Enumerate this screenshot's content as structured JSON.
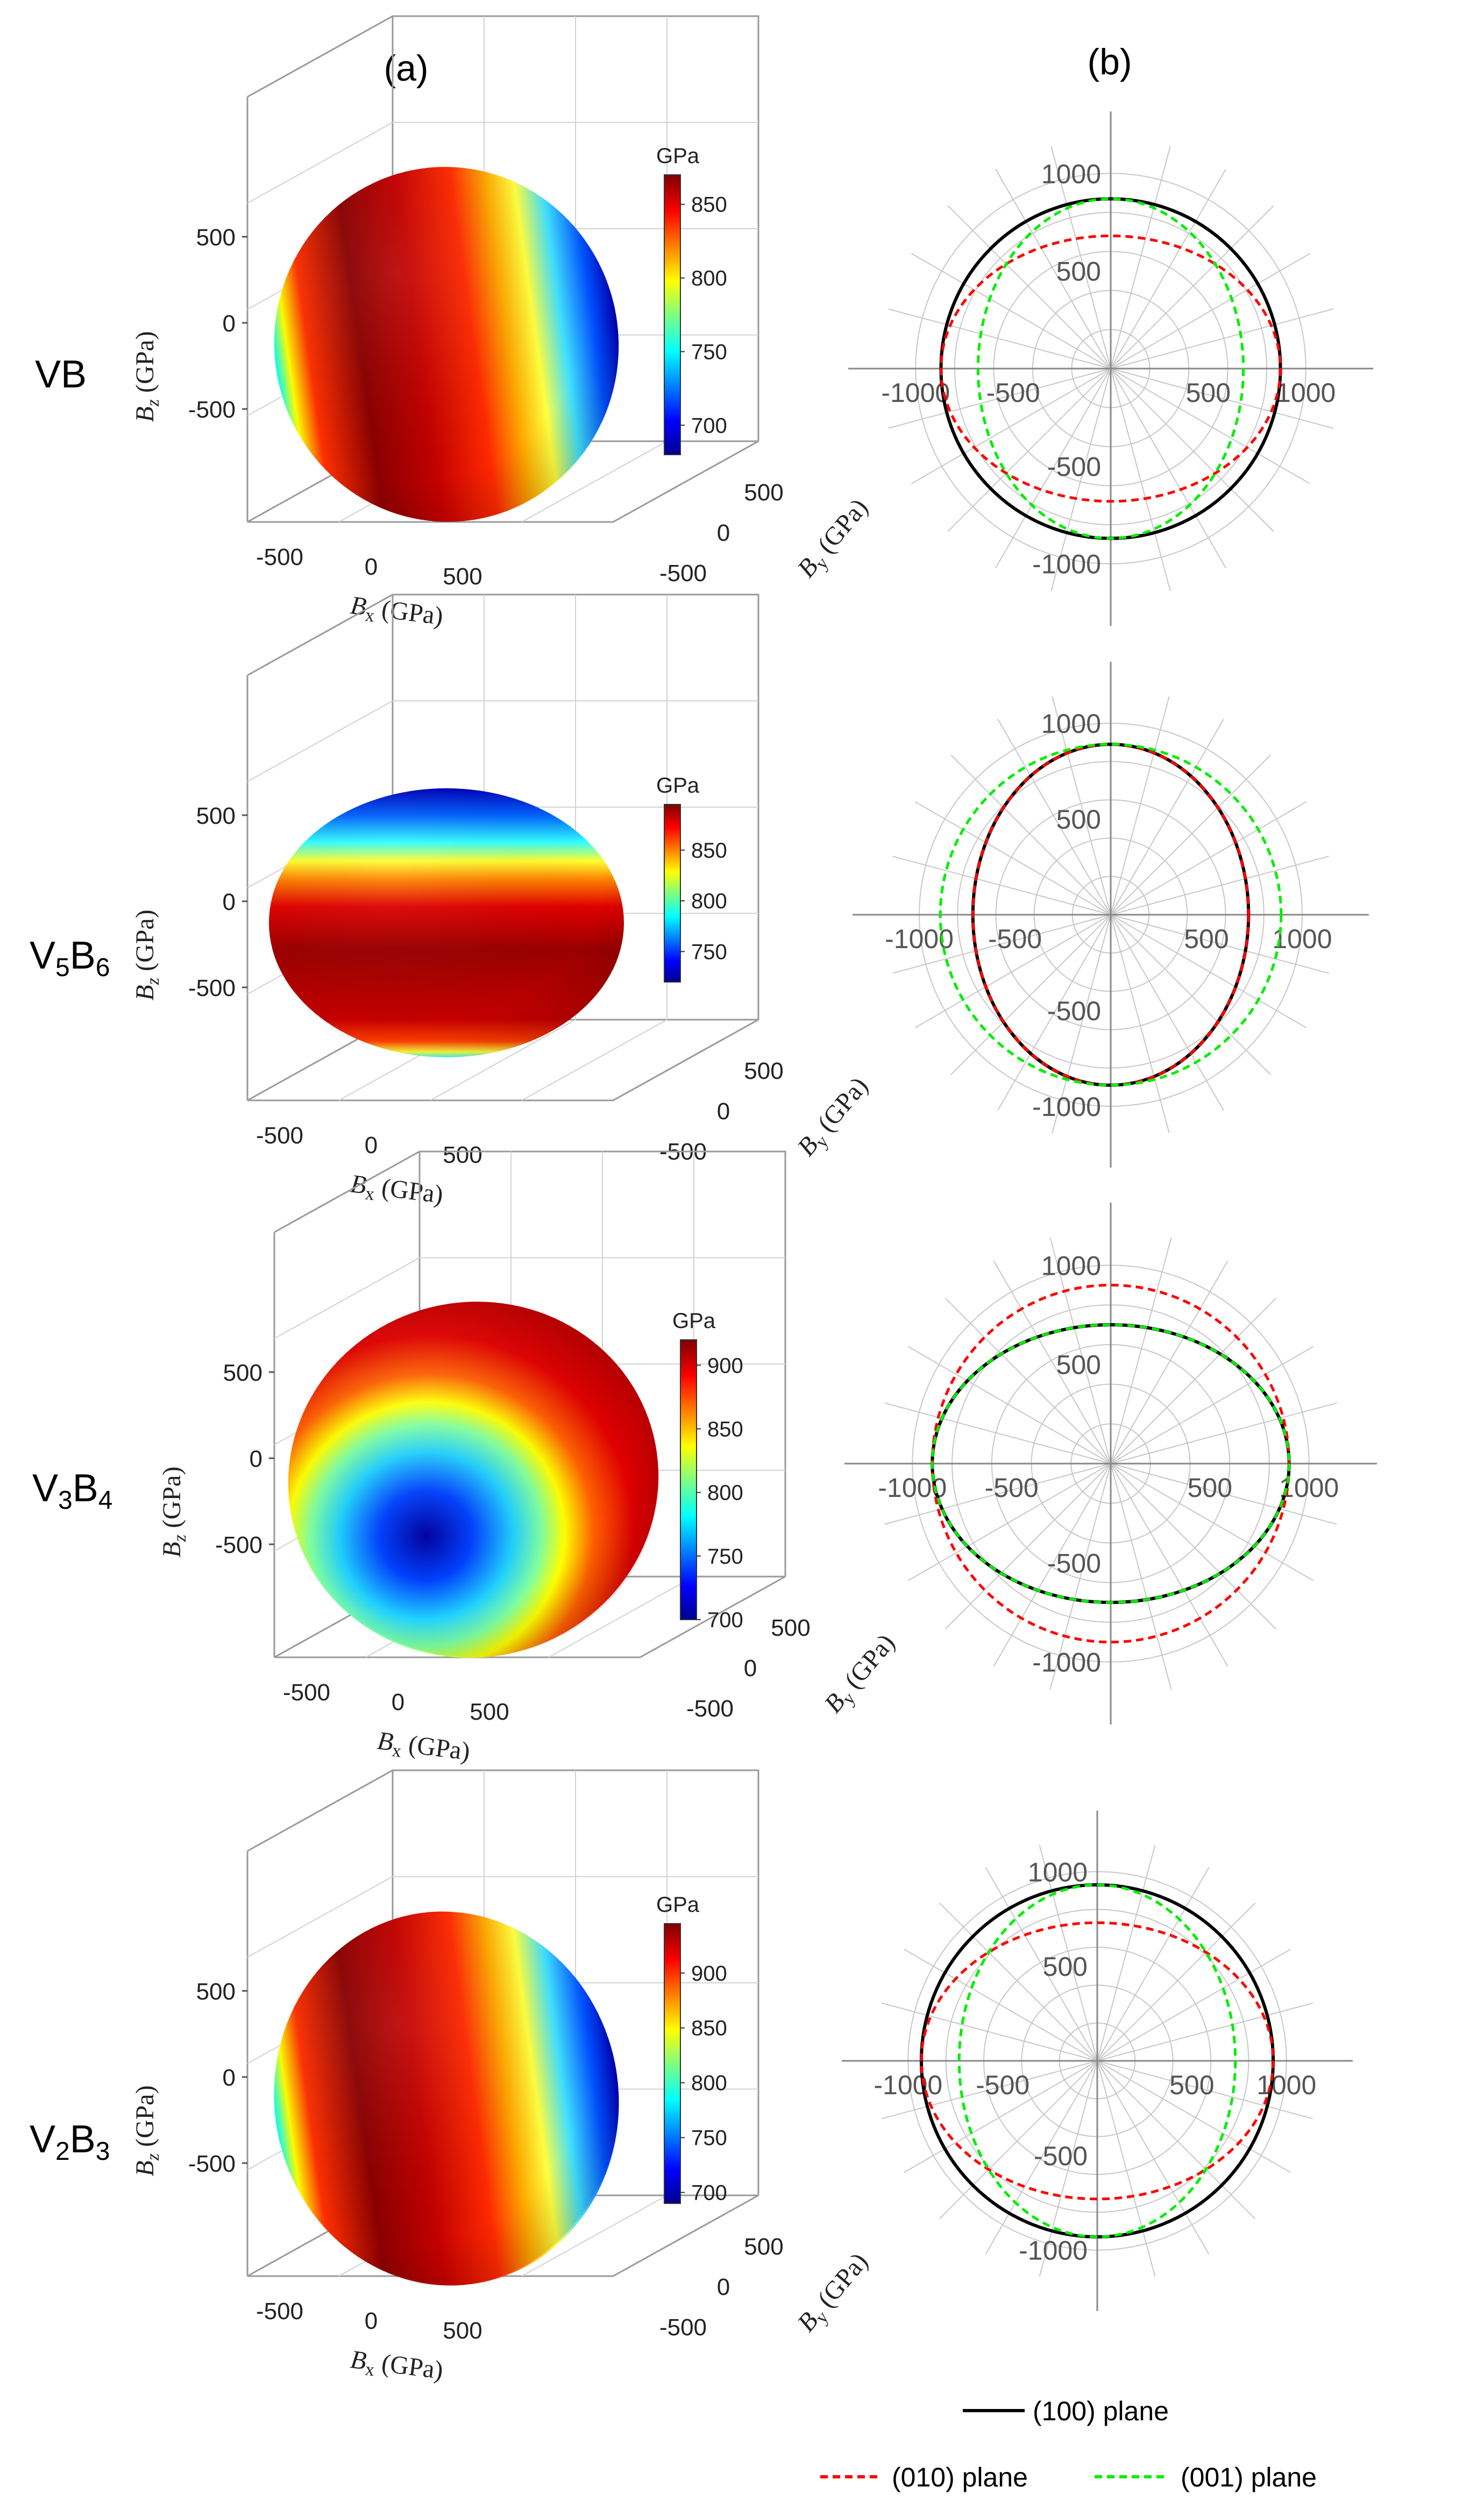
{
  "panel_labels": {
    "a": "(a)",
    "b": "(b)"
  },
  "legend": {
    "plane_100": "(100) plane",
    "plane_010": "(010) plane",
    "plane_001": "(001) plane",
    "colors": {
      "plane_100": "#000000",
      "plane_010": "#ff0000",
      "plane_001": "#00ee00"
    }
  },
  "chart_data": [
    {
      "material_main": "VB",
      "material_sub1": "",
      "material_after": "",
      "material_sub2": "",
      "surface": {
        "type": "3d-surface",
        "colorbar_title": "GPa",
        "colorbar_ticks": [
          "850",
          "800",
          "750",
          "700"
        ],
        "colorbar_values": [
          850,
          800,
          750,
          700
        ],
        "colorbar_range": [
          680,
          870
        ],
        "z_ticks": [
          "500",
          "0",
          "-500"
        ],
        "x_ticks": [
          "-500",
          "0",
          "500"
        ],
        "y_ticks": [
          "500",
          "0",
          "-500"
        ],
        "xlabel": "B",
        "xlabel_sub": "x",
        "ylabel": "B",
        "ylabel_sub": "y",
        "zlabel": "B",
        "zlabel_sub": "z",
        "unit": " (GPa)",
        "shape": "vertical-bands"
      },
      "polar": {
        "type": "polar",
        "rmax": 1180,
        "ring_values": [
          200,
          400,
          600,
          800,
          1000
        ],
        "x_ticks": [
          "-1000",
          "-500",
          "500",
          "1000"
        ],
        "y_ticks": [
          "1000",
          "500",
          "-500",
          "-1000"
        ],
        "series": [
          {
            "name": "(100) plane",
            "color": "#000000",
            "dash": false,
            "rx": 870,
            "ry": 870
          },
          {
            "name": "(010) plane",
            "color": "#ff0000",
            "dash": true,
            "rx": 870,
            "ry": 680
          },
          {
            "name": "(001) plane",
            "color": "#00ee00",
            "dash": true,
            "rx": 680,
            "ry": 870
          }
        ]
      }
    },
    {
      "material_main": "V",
      "material_sub1": "5",
      "material_after": "B",
      "material_sub2": "6",
      "surface": {
        "type": "3d-surface",
        "colorbar_title": "GPa",
        "colorbar_ticks": [
          "850",
          "800",
          "750"
        ],
        "colorbar_values": [
          850,
          800,
          750
        ],
        "colorbar_range": [
          720,
          895
        ],
        "z_ticks": [
          "500",
          "0",
          "-500"
        ],
        "x_ticks": [
          "-500",
          "0",
          "500"
        ],
        "y_ticks": [
          "500",
          "0",
          "-500"
        ],
        "xlabel": "B",
        "xlabel_sub": "x",
        "ylabel": "B",
        "ylabel_sub": "y",
        "zlabel": "B",
        "zlabel_sub": "z",
        "unit": " (GPa)",
        "shape": "horizontal-bands"
      },
      "polar": {
        "type": "polar",
        "rmax": 1180,
        "ring_values": [
          200,
          400,
          600,
          800,
          1000
        ],
        "x_ticks": [
          "-1000",
          "-500",
          "500",
          "1000"
        ],
        "y_ticks": [
          "1000",
          "500",
          "-500",
          "-1000"
        ],
        "series": [
          {
            "name": "(100) plane",
            "color": "#000000",
            "dash": false,
            "rx": 720,
            "ry": 890
          },
          {
            "name": "(010) plane",
            "color": "#ff0000",
            "dash": true,
            "rx": 720,
            "ry": 890
          },
          {
            "name": "(001) plane",
            "color": "#00ee00",
            "dash": true,
            "rx": 890,
            "ry": 890
          }
        ]
      }
    },
    {
      "material_main": "V",
      "material_sub1": "3",
      "material_after": "B",
      "material_sub2": "4",
      "surface": {
        "type": "3d-surface",
        "colorbar_title": "GPa",
        "colorbar_ticks": [
          "900",
          "850",
          "800",
          "750",
          "700"
        ],
        "colorbar_values": [
          900,
          850,
          800,
          750,
          700
        ],
        "colorbar_range": [
          700,
          920
        ],
        "z_ticks": [
          "500",
          "0",
          "-500"
        ],
        "x_ticks": [
          "-500",
          "0",
          "500"
        ],
        "y_ticks": [
          "500",
          "0",
          "-500"
        ],
        "xlabel": "B",
        "xlabel_sub": "x",
        "ylabel": "B",
        "ylabel_sub": "y",
        "zlabel": "B",
        "zlabel_sub": "z",
        "unit": " (GPa)",
        "shape": "spot"
      },
      "polar": {
        "type": "polar",
        "rmax": 1180,
        "ring_values": [
          200,
          400,
          600,
          800,
          1000
        ],
        "x_ticks": [
          "-1000",
          "-500",
          "500",
          "1000"
        ],
        "y_ticks": [
          "1000",
          "500",
          "-500",
          "-1000"
        ],
        "series": [
          {
            "name": "(100) plane",
            "color": "#000000",
            "dash": false,
            "rx": 900,
            "ry": 700
          },
          {
            "name": "(010) plane",
            "color": "#ff0000",
            "dash": true,
            "rx": 900,
            "ry": 900
          },
          {
            "name": "(001) plane",
            "color": "#00ee00",
            "dash": true,
            "rx": 900,
            "ry": 700
          }
        ]
      }
    },
    {
      "material_main": "V",
      "material_sub1": "2",
      "material_after": "B",
      "material_sub2": "3",
      "surface": {
        "type": "3d-surface",
        "colorbar_title": "GPa",
        "colorbar_ticks": [
          "900",
          "850",
          "800",
          "750",
          "700"
        ],
        "colorbar_values": [
          900,
          850,
          800,
          750,
          700
        ],
        "colorbar_range": [
          690,
          945
        ],
        "z_ticks": [
          "500",
          "0",
          "-500"
        ],
        "x_ticks": [
          "-500",
          "0",
          "500"
        ],
        "y_ticks": [
          "500",
          "0",
          "-500"
        ],
        "xlabel": "B",
        "xlabel_sub": "x",
        "ylabel": "B",
        "ylabel_sub": "y",
        "zlabel": "B",
        "zlabel_sub": "z",
        "unit": " (GPa)",
        "shape": "vertical-bands"
      },
      "polar": {
        "type": "polar",
        "rmax": 1180,
        "ring_values": [
          200,
          400,
          600,
          800,
          1000
        ],
        "x_ticks": [
          "-1000",
          "-500",
          "500",
          "1000"
        ],
        "y_ticks": [
          "1000",
          "500",
          "-500",
          "-1000"
        ],
        "series": [
          {
            "name": "(100) plane",
            "color": "#000000",
            "dash": false,
            "rx": 930,
            "ry": 930
          },
          {
            "name": "(010) plane",
            "color": "#ff0000",
            "dash": true,
            "rx": 930,
            "ry": 730
          },
          {
            "name": "(001) plane",
            "color": "#00ee00",
            "dash": true,
            "rx": 730,
            "ry": 930
          }
        ]
      }
    }
  ]
}
